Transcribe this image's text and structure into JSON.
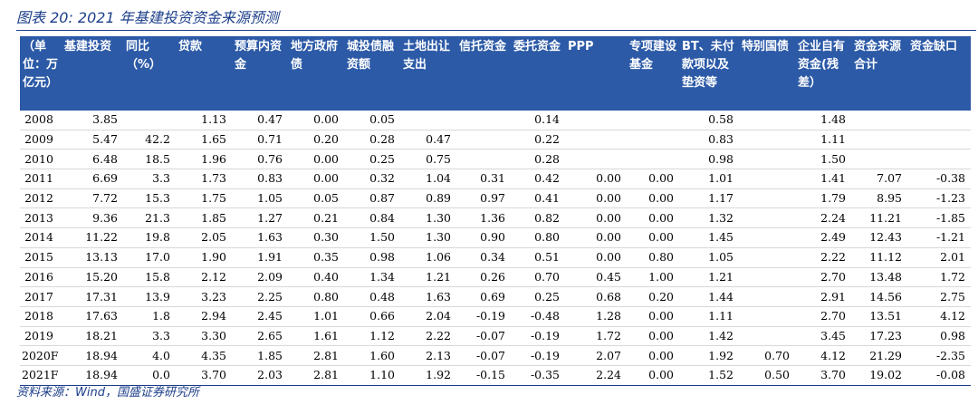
{
  "title": "图表 20:  2021 年基建投资资金来源预测",
  "source": "资料来源：Wind，国盛证券研究所",
  "headers": [
    "（单位：万亿元）",
    "基建投资",
    "同比（%）",
    "贷款",
    "预算内资金",
    "地方政府债",
    "城投债融资额",
    "土地出让支出",
    "信托资金",
    "委托资金",
    "PPP",
    "专项建设基金",
    "BT、未付款项以及垫资等",
    "特别国债",
    "企业自有资金(残差）",
    "资金来源合计",
    "资金缺口"
  ],
  "rows": [
    [
      "2008",
      "3.85",
      "",
      "1.13",
      "0.47",
      "0.00",
      "0.05",
      "",
      "",
      "0.14",
      "",
      "",
      "0.58",
      "",
      "1.48",
      "",
      ""
    ],
    [
      "2009",
      "5.47",
      "42.2",
      "1.65",
      "0.71",
      "0.20",
      "0.28",
      "0.47",
      "",
      "0.22",
      "",
      "",
      "0.83",
      "",
      "1.11",
      "",
      ""
    ],
    [
      "2010",
      "6.48",
      "18.5",
      "1.96",
      "0.76",
      "0.00",
      "0.25",
      "0.75",
      "",
      "0.28",
      "",
      "",
      "0.98",
      "",
      "1.50",
      "",
      ""
    ],
    [
      "2011",
      "6.69",
      "3.3",
      "1.73",
      "0.83",
      "0.00",
      "0.32",
      "1.04",
      "0.31",
      "0.42",
      "0.00",
      "0.00",
      "1.01",
      "",
      "1.41",
      "7.07",
      "-0.38"
    ],
    [
      "2012",
      "7.72",
      "15.3",
      "1.75",
      "1.05",
      "0.05",
      "0.87",
      "0.89",
      "0.97",
      "0.41",
      "0.00",
      "0.00",
      "1.17",
      "",
      "1.79",
      "8.95",
      "-1.23"
    ],
    [
      "2013",
      "9.36",
      "21.3",
      "1.85",
      "1.27",
      "0.21",
      "0.84",
      "1.30",
      "1.36",
      "0.82",
      "0.00",
      "0.00",
      "1.32",
      "",
      "2.24",
      "11.21",
      "-1.85"
    ],
    [
      "2014",
      "11.22",
      "19.8",
      "2.05",
      "1.63",
      "0.30",
      "1.50",
      "1.30",
      "0.90",
      "0.80",
      "0.00",
      "0.00",
      "1.45",
      "",
      "2.49",
      "12.43",
      "-1.21"
    ],
    [
      "2015",
      "13.13",
      "17.0",
      "1.90",
      "1.91",
      "0.35",
      "0.98",
      "1.06",
      "0.34",
      "0.51",
      "0.00",
      "0.80",
      "1.05",
      "",
      "2.22",
      "11.12",
      "2.01"
    ],
    [
      "2016",
      "15.20",
      "15.8",
      "2.12",
      "2.09",
      "0.40",
      "1.34",
      "1.21",
      "0.26",
      "0.70",
      "0.45",
      "1.00",
      "1.21",
      "",
      "2.70",
      "13.48",
      "1.72"
    ],
    [
      "2017",
      "17.31",
      "13.9",
      "3.23",
      "2.25",
      "0.80",
      "0.48",
      "1.63",
      "0.69",
      "0.25",
      "0.68",
      "0.20",
      "1.44",
      "",
      "2.91",
      "14.56",
      "2.75"
    ],
    [
      "2018",
      "17.63",
      "1.8",
      "2.94",
      "2.45",
      "1.01",
      "0.66",
      "2.04",
      "-0.19",
      "-0.48",
      "1.28",
      "0.00",
      "1.11",
      "",
      "2.70",
      "13.51",
      "4.12"
    ],
    [
      "2019",
      "18.21",
      "3.3",
      "3.30",
      "2.65",
      "1.61",
      "1.12",
      "2.22",
      "-0.07",
      "-0.19",
      "1.72",
      "0.00",
      "1.42",
      "",
      "3.45",
      "17.23",
      "0.98"
    ],
    [
      "2020F",
      "18.94",
      "4.0",
      "4.35",
      "1.85",
      "2.81",
      "1.60",
      "2.13",
      "-0.07",
      "-0.19",
      "2.07",
      "0.00",
      "1.92",
      "0.70",
      "4.12",
      "21.29",
      "-2.35"
    ],
    [
      "2021F",
      "18.94",
      "0.0",
      "3.70",
      "2.03",
      "2.81",
      "1.10",
      "1.92",
      "-0.15",
      "-0.35",
      "2.24",
      "0.00",
      "1.52",
      "0.50",
      "3.70",
      "19.02",
      "-0.08"
    ]
  ]
}
